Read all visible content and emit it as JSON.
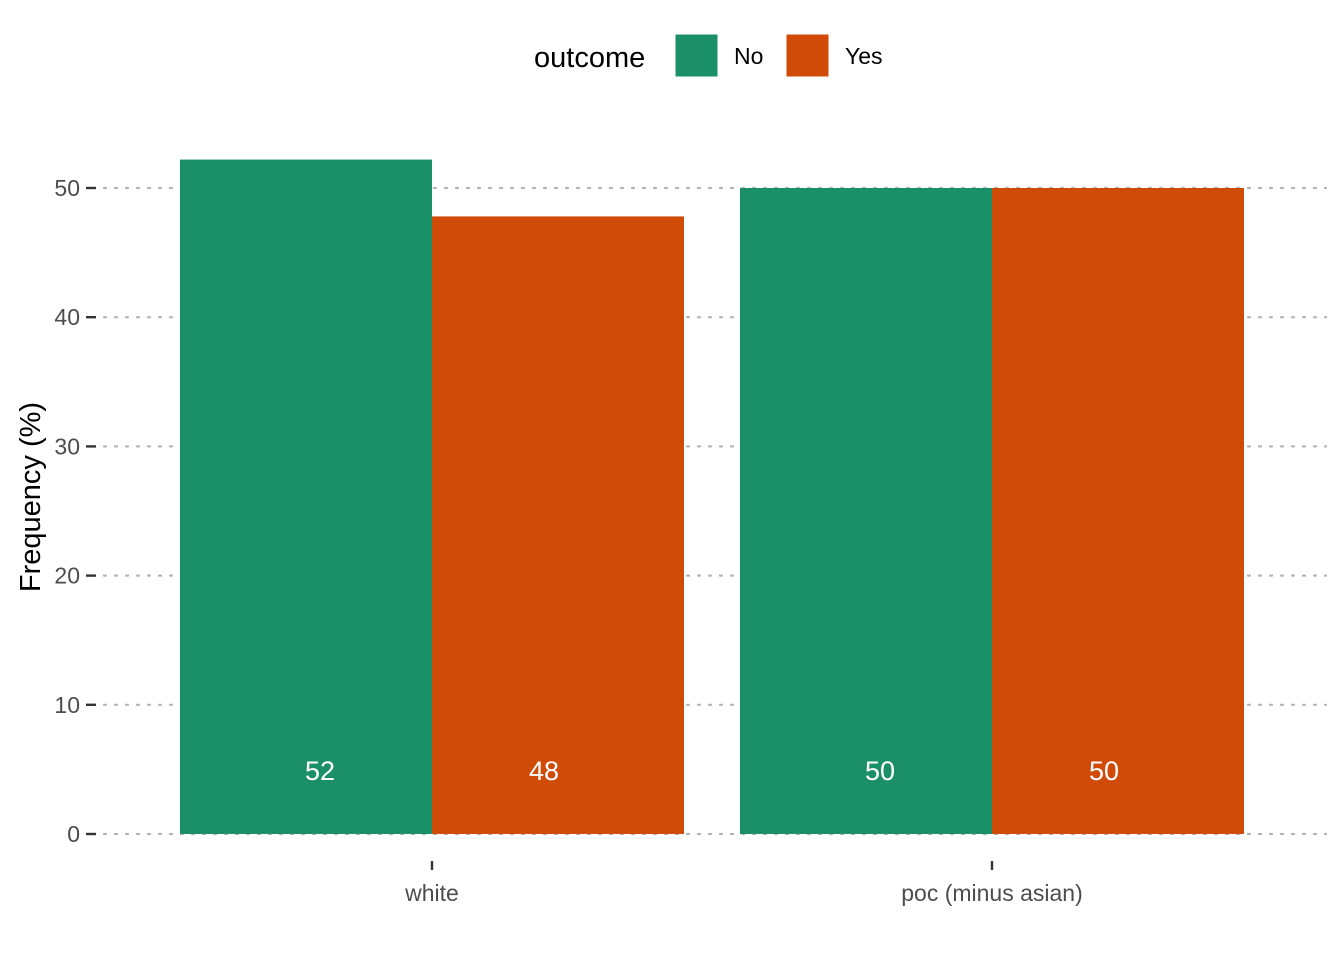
{
  "chart_data": {
    "type": "bar",
    "categories": [
      "white",
      "poc (minus asian)"
    ],
    "series": [
      {
        "name": "No",
        "color": "#1B9068",
        "values": [
          52.2,
          50
        ],
        "labels": [
          "52",
          "50"
        ]
      },
      {
        "name": "Yes",
        "color": "#D04A08",
        "values": [
          47.8,
          50
        ],
        "labels": [
          "48",
          "50"
        ]
      }
    ],
    "title": "",
    "xlabel": "",
    "ylabel": "Frequency (%)",
    "ylim": [
      0,
      53
    ],
    "yticks": [
      0,
      10,
      20,
      30,
      40,
      50
    ],
    "grid": "horizontal dotted",
    "legend": {
      "title": "outcome",
      "position": "top"
    }
  }
}
